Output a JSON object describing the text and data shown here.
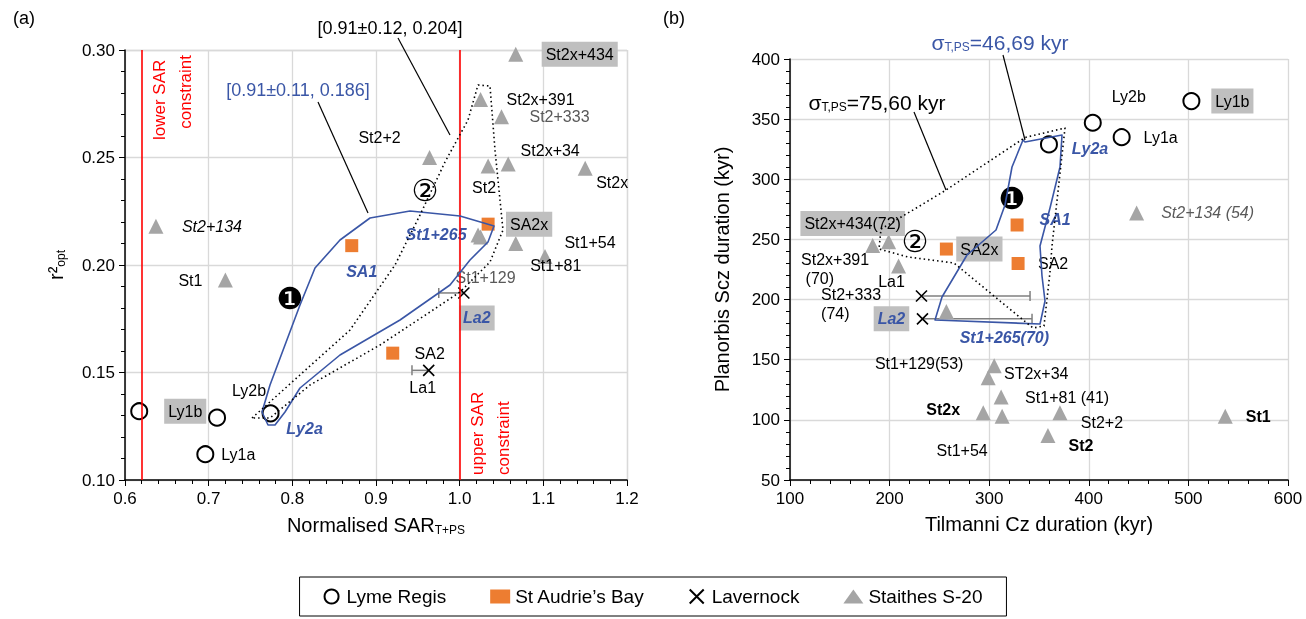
{
  "chart_data": [
    {
      "type": "scatter",
      "title": "(a)",
      "xlabel": "Normalised SAR$_{T+PS}$",
      "ylabel": "r²$_{opt}$",
      "xlim": [
        0.6,
        1.2
      ],
      "xticks": [
        0.6,
        0.7,
        0.8,
        0.9,
        {
          "value": 1,
          "label": "1.0"
        },
        1.1,
        1.2
      ],
      "ylim": [
        0.1,
        0.3
      ],
      "yticks": [
        {
          "value": 0.1,
          "label": "0.10"
        },
        0.15,
        {
          "value": 0.2,
          "label": "0.20"
        },
        0.25,
        {
          "value": 0.3,
          "label": "0.30"
        }
      ],
      "grid": true,
      "legend": "bottom",
      "series": [
        {
          "name": "Lyme Regis",
          "color": "#000000",
          "marker": "circle",
          "x": [
            0.617,
            0.71,
            0.774,
            0.696
          ],
          "values": [
            0.132,
            0.129,
            0.131,
            0.112
          ],
          "value_labels": [
            "Ly1b",
            "Ly2b",
            "Ly2a",
            "Ly1a"
          ]
        },
        {
          "name": "St Audrie’s Bay",
          "color": "#ed7d31",
          "marker": "square",
          "x": [
            0.871,
            0.92,
            1.034
          ],
          "values": [
            0.209,
            0.159,
            0.219
          ],
          "value_labels": [
            "SA1",
            "SA2",
            "SA2x"
          ]
        },
        {
          "name": "Lavernock",
          "color": "#000000",
          "marker": "cross",
          "x": [
            1.005,
            0.963
          ],
          "values": [
            0.187,
            0.151
          ],
          "xerrors": [
            [
              0.975,
              1.005
            ],
            [
              0.943,
              0.963
            ]
          ],
          "value_labels": [
            "La2",
            "La1"
          ]
        },
        {
          "name": "Staithes S-20",
          "color": "#a5a5a5",
          "marker": "triangle",
          "x": [
            1.067,
            1.025,
            1.05,
            0.964,
            1.034,
            1.058,
            1.15,
            0.637,
            0.72,
            1.022,
            1.025,
            1.067,
            1.102
          ],
          "values": [
            0.298,
            0.277,
            0.269,
            0.25,
            0.246,
            0.247,
            0.245,
            0.218,
            0.193,
            0.214,
            0.213,
            0.21,
            0.204
          ],
          "value_labels": [
            "St2x+434",
            "St2x+391",
            "St2+333",
            "St2+2",
            "St2",
            "St2x+34",
            "St2x",
            "St2+134",
            "St1",
            "St1+265",
            "St1+129",
            "St1+81",
            "St1+54"
          ]
        }
      ],
      "ref_lines": [
        {
          "axis": "x",
          "value": 0.62,
          "label": "lower SAR constraint",
          "color": "#ff0000"
        },
        {
          "axis": "x",
          "value": 1.0,
          "label": "upper SAR constraint",
          "color": "#ff0000"
        }
      ],
      "annotations": [
        "[0.91±0.12, 0.204]",
        "[0.91±0.11, 0.186]",
        "❶",
        "②"
      ]
    },
    {
      "type": "scatter",
      "title": "(b)",
      "xlabel": "Tilmanni Cz duration (kyr)",
      "ylabel": "Planorbis Scz duration (kyr)",
      "xlim": [
        100,
        600
      ],
      "xticks": [
        100,
        200,
        300,
        400,
        500,
        600
      ],
      "ylim": [
        50,
        400
      ],
      "yticks": [
        50,
        100,
        150,
        200,
        250,
        300,
        350,
        400
      ],
      "grid": true,
      "series": [
        {
          "color": "#000000",
          "marker": "circle",
          "x": [
            503,
            404,
            360,
            433
          ],
          "values": [
            365,
            347,
            329,
            335
          ],
          "value_labels": [
            "Ly1b",
            "Ly2b",
            "Ly2a",
            "Ly1a"
          ]
        },
        {
          "color": "#ed7d31",
          "marker": "square",
          "x": [
            328,
            329,
            257
          ],
          "values": [
            262,
            230,
            242
          ],
          "value_labels": [
            "SA1",
            "SA2",
            "SA2x"
          ]
        },
        {
          "color": "#000000",
          "marker": "cross",
          "x": [
            233,
            232
          ],
          "values": [
            184,
            203
          ],
          "xerrors": [
            [
              233,
              343
            ],
            [
              232,
              341
            ]
          ],
          "value_labels": [
            "La2",
            "La1"
          ]
        },
        {
          "color": "#a5a5a5",
          "marker": "triangle",
          "x": [
            183,
            199,
            209,
            371,
            359,
            299,
            294,
            448,
            537,
            257,
            305,
            312,
            313
          ],
          "values": [
            245,
            248,
            228,
            106,
            87,
            135,
            106,
            272,
            103,
            190,
            145,
            119,
            103
          ],
          "value_labels": [
            "St2x+434(72)",
            "St2x+391 (70)",
            "St2+333 (74)",
            "St2+2",
            "St2",
            "ST2x+34",
            "St2x",
            "St2+134 (54)",
            "St1",
            "St1+265(70)",
            "St1+129(53)",
            "St1+81 (41)",
            "St1+54"
          ]
        }
      ],
      "annotations": [
        "σ$_{T,PS}$=46,69 kyr",
        "σ$_{T,PS}$=75,60 kyr",
        "❶",
        "②"
      ]
    }
  ]
}
